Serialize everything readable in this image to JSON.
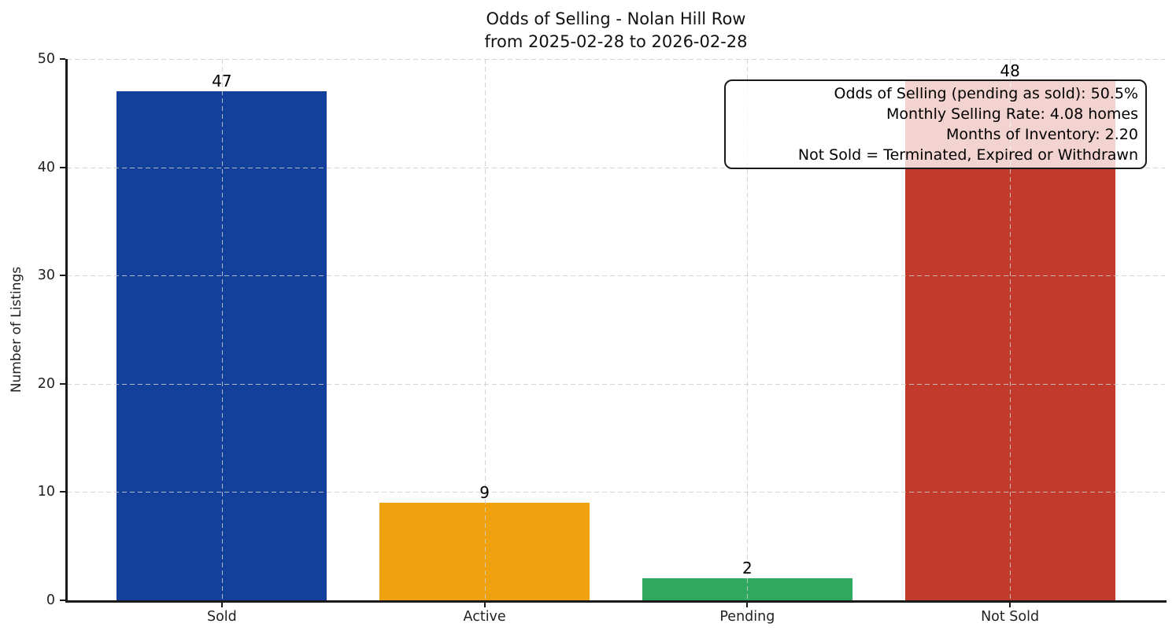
{
  "figure": {
    "title_line1": "Odds of Selling - Nolan Hill Row",
    "title_line2": "from 2025-02-28 to 2026-02-28",
    "ylabel": "Number of Listings"
  },
  "annotation_box": {
    "lines": [
      "Odds of Selling (pending as sold): 50.5%",
      "Monthly Selling Rate: 4.08 homes",
      "Months of Inventory: 2.20",
      "Not Sold = Terminated, Expired or Withdrawn"
    ]
  },
  "chart_data": {
    "type": "bar",
    "title": "Odds of Selling - Nolan Hill Row\nfrom 2025-02-28 to 2026-02-28",
    "categories": [
      "Sold",
      "Active",
      "Pending",
      "Not Sold"
    ],
    "values": [
      47,
      9,
      2,
      48
    ],
    "bar_colors": [
      "#13409b",
      "#f0a10e",
      "#2fa95d",
      "#c23a2b"
    ],
    "xlabel": "",
    "ylabel": "Number of Listings",
    "ylim": [
      0,
      50
    ],
    "yticks": [
      0,
      10,
      20,
      30,
      40,
      50
    ],
    "grid": "dashed horizontal and vertical gridlines, drawn above bars",
    "legend": "none",
    "stats": {
      "odds_of_selling_pending_as_sold_pct": 50.5,
      "monthly_selling_rate_homes": 4.08,
      "months_of_inventory": 2.2,
      "not_sold_definition": "Terminated, Expired or Withdrawn"
    }
  }
}
